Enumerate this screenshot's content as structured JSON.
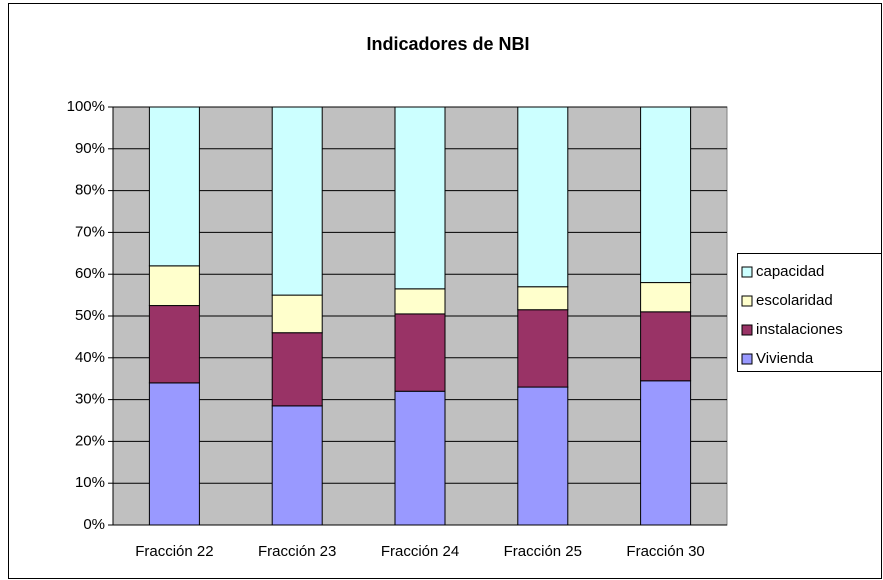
{
  "chart_data": {
    "type": "stacked_bar",
    "title": "Indicadores de NBI",
    "categories": [
      "Fracción 22",
      "Fracción 23",
      "Fracción 24",
      "Fracción 25",
      "Fracción 30"
    ],
    "series": [
      {
        "name": "Vivienda",
        "color": "#9999ff",
        "values": [
          34,
          28.5,
          32,
          33,
          34.5
        ]
      },
      {
        "name": "instalaciones",
        "color": "#993366",
        "values": [
          18.5,
          17.5,
          18.5,
          18.5,
          16.5
        ]
      },
      {
        "name": "escolaridad",
        "color": "#ffffcc",
        "values": [
          9.5,
          9,
          6,
          5.5,
          7
        ]
      },
      {
        "name": "capacidad",
        "color": "#ccffff",
        "values": [
          38,
          45,
          43.5,
          43,
          42
        ]
      }
    ],
    "ylim": [
      0,
      100
    ],
    "yticks": [
      {
        "value": 0,
        "label": "0%"
      },
      {
        "value": 10,
        "label": "10%"
      },
      {
        "value": 20,
        "label": "20%"
      },
      {
        "value": 30,
        "label": "30%"
      },
      {
        "value": 40,
        "label": "40%"
      },
      {
        "value": 50,
        "label": "50%"
      },
      {
        "value": 60,
        "label": "60%"
      },
      {
        "value": 70,
        "label": "70%"
      },
      {
        "value": 80,
        "label": "80%"
      },
      {
        "value": 90,
        "label": "90%"
      },
      {
        "value": 100,
        "label": "100%"
      }
    ],
    "grid": true,
    "legend": "right"
  }
}
